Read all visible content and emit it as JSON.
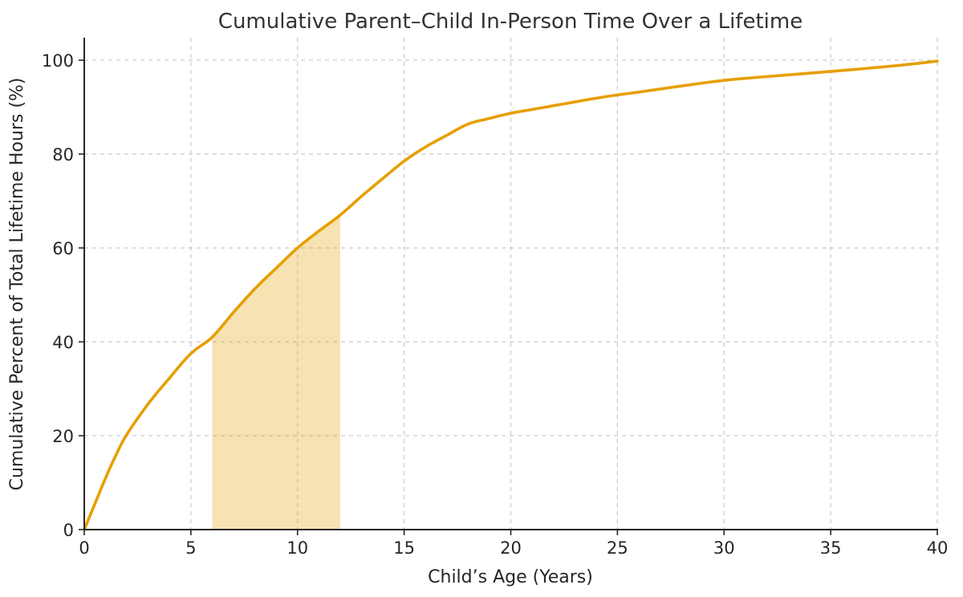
{
  "chart_data": {
    "type": "line",
    "title": "Cumulative Parent–Child In-Person Time Over a Lifetime",
    "xlabel": "Child’s Age (Years)",
    "ylabel": "Cumulative Percent of Total Lifetime Hours (%)",
    "xlim": [
      0,
      40
    ],
    "ylim": [
      0,
      105
    ],
    "x_ticks": [
      0,
      5,
      10,
      15,
      20,
      25,
      30,
      35,
      40
    ],
    "y_ticks": [
      0,
      20,
      40,
      60,
      80,
      100
    ],
    "grid": true,
    "legend": "none",
    "series": [
      {
        "name": "cumulative-percent-of-lifetime-in-person-hours",
        "x": [
          0,
          0.5,
          1,
          1.5,
          2,
          3,
          4,
          5,
          6,
          7,
          8,
          9,
          10,
          11,
          12,
          13,
          14,
          15,
          16,
          17,
          18,
          19,
          20,
          21,
          22,
          23,
          24,
          25,
          26,
          28,
          30,
          32,
          35,
          38,
          40
        ],
        "y": [
          0,
          5.5,
          11,
          16,
          20.3,
          26.8,
          32.3,
          37.5,
          41,
          46.3,
          51.3,
          55.7,
          60,
          63.6,
          67,
          71,
          74.8,
          78.5,
          81.5,
          84,
          86.4,
          87.6,
          88.7,
          89.5,
          90.3,
          91.1,
          91.9,
          92.6,
          93.2,
          94.5,
          95.7,
          96.5,
          97.6,
          98.8,
          99.8
        ]
      }
    ],
    "shaded_region": {
      "x_start": 6,
      "x_end": 12
    },
    "colors": {
      "line": "#E69F00",
      "region_fill": "rgba(230,159,0,0.30)",
      "grid": "#c9c9c9",
      "axis": "#262626",
      "text": "#262626",
      "background": "#ffffff"
    }
  }
}
